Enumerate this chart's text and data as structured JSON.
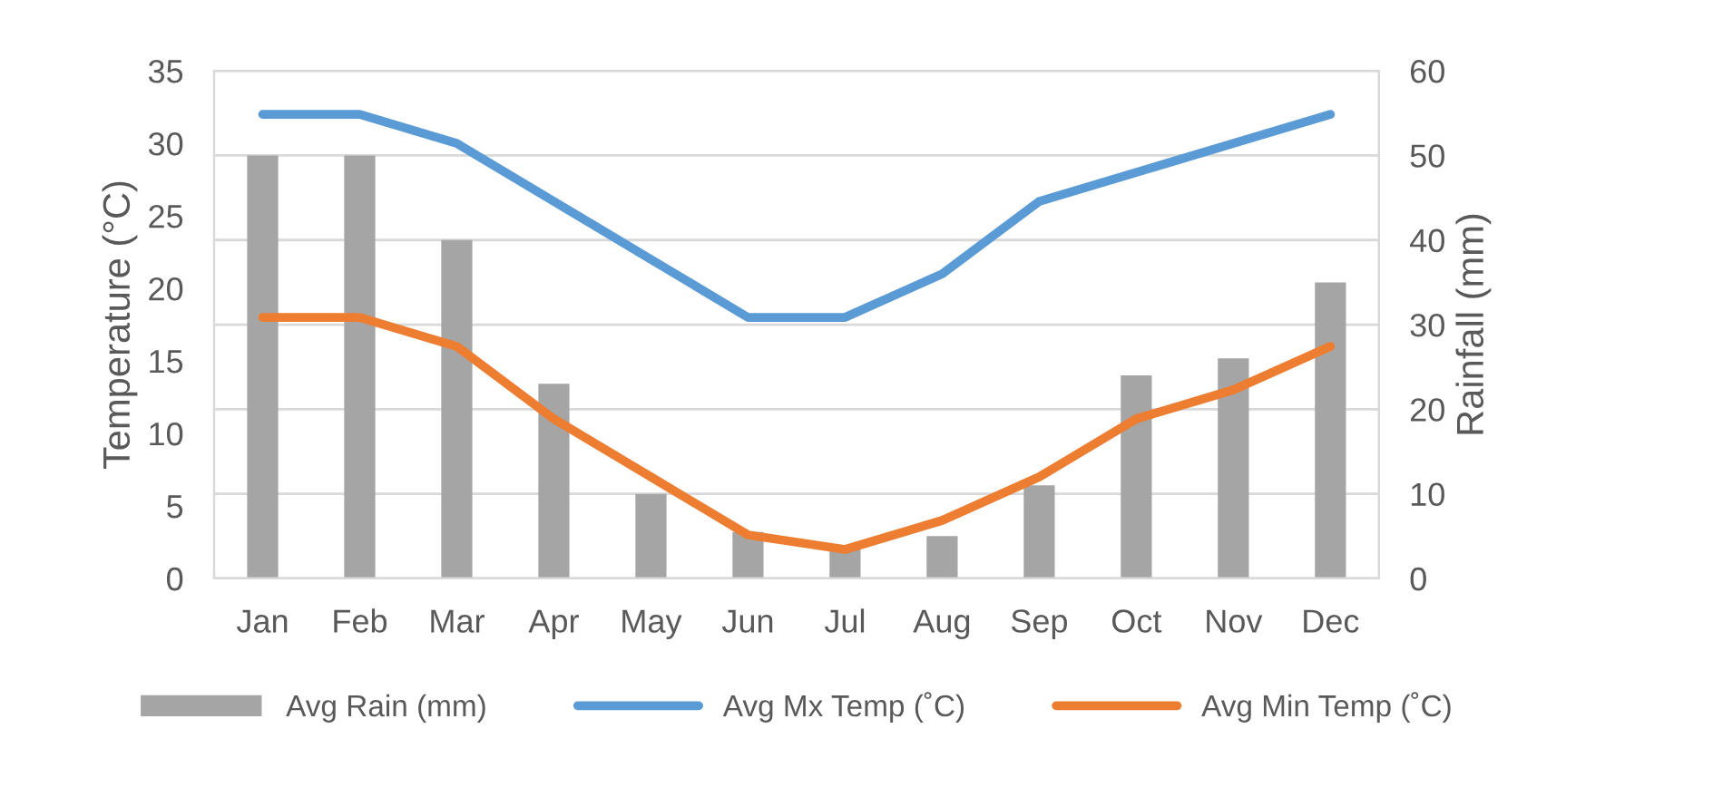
{
  "chart_data": {
    "type": "bar",
    "categories": [
      "Jan",
      "Feb",
      "Mar",
      "Apr",
      "May",
      "Jun",
      "Jul",
      "Aug",
      "Sep",
      "Oct",
      "Nov",
      "Dec"
    ],
    "ylabel": "Temperature (°C)",
    "y2label": "Rainfall (mm)",
    "ylim": [
      0,
      35
    ],
    "yticks": [
      0,
      5,
      10,
      15,
      20,
      25,
      30,
      35
    ],
    "y2lim": [
      0,
      60
    ],
    "y2ticks": [
      0,
      10,
      20,
      30,
      40,
      50,
      60
    ],
    "grid": "y",
    "legend": "bottom",
    "series": [
      {
        "name": "Avg Rain (mm)",
        "axis": "y2",
        "color": "#a5a5a5",
        "values": [
          50,
          50,
          40,
          23,
          10,
          5.5,
          3.5,
          5,
          11,
          24,
          26,
          35
        ]
      },
      {
        "name": "Avg Mx Temp (˚C)",
        "type": "line",
        "color": "#5b9bd5",
        "values": [
          32,
          32,
          30,
          26,
          22,
          18,
          18,
          21,
          26,
          28,
          30,
          32
        ]
      },
      {
        "name": "Avg Min Temp (˚C)",
        "type": "line",
        "color": "#ed7d31",
        "values": [
          18,
          18,
          16,
          11,
          7,
          3,
          2,
          4,
          7,
          11,
          13,
          16
        ]
      }
    ]
  }
}
